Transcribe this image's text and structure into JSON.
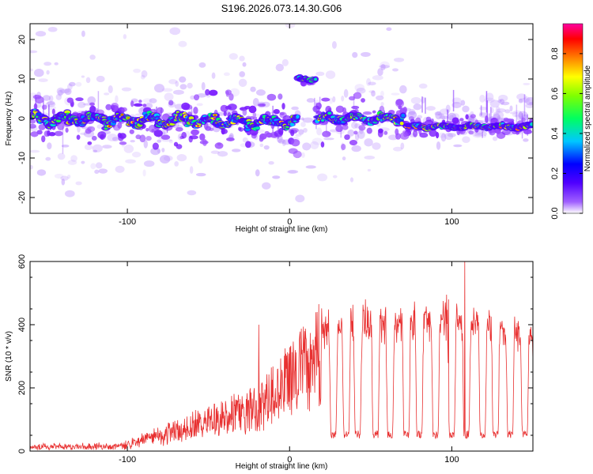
{
  "title": "S196.2026.073.14.30.G06",
  "colors": {
    "snr_line": "#e83030",
    "axis": "#000000",
    "background": "#ffffff"
  },
  "chart_data": [
    {
      "type": "heatmap",
      "xlabel": "Height of straight line (km)",
      "ylabel": "Frequency (Hz)",
      "xlim": [
        -160,
        150
      ],
      "ylim": [
        -24,
        24
      ],
      "xticks": [
        -100,
        0,
        100
      ],
      "xtick_labels": [
        "-100",
        "0",
        "100"
      ],
      "yticks": [
        20,
        10,
        0,
        -10,
        -20
      ],
      "ytick_labels": [
        "20",
        "10",
        "0",
        "-10",
        "-20"
      ],
      "ridge_segments": [
        {
          "x_start": -160,
          "x_end": 5,
          "freq_start": 0,
          "freq_end": -1,
          "wobble": 2.2
        },
        {
          "x_start": 5,
          "x_end": 16,
          "freq_start": 10,
          "freq_end": 10,
          "wobble": 0.6
        },
        {
          "x_start": 17,
          "x_end": 70,
          "freq_start": 0,
          "freq_end": 0,
          "wobble": 1.6
        },
        {
          "x_start": 72,
          "x_end": 150,
          "freq_start": -2,
          "freq_end": -2,
          "wobble": 0.8
        }
      ],
      "colorbar": {
        "label": "Normalized spectral amplitude",
        "range": [
          0,
          0.95
        ],
        "ticks": [
          0.0,
          0.2,
          0.4,
          0.6,
          0.8
        ],
        "tick_labels": [
          "0.0",
          "0.2",
          "0.4",
          "0.6",
          "0.8"
        ],
        "colormap": [
          "#ffffff",
          "#8a00ff",
          "#0000ff",
          "#00c8ff",
          "#00ff40",
          "#ffff00",
          "#ff8000",
          "#ff0000",
          "#ff00a0"
        ]
      }
    },
    {
      "type": "line",
      "xlabel": "Height of straight line (km)",
      "ylabel": "SNR (10 * v/v)",
      "xlim": [
        -160,
        150
      ],
      "ylim": [
        0,
        600
      ],
      "xticks": [
        -100,
        0,
        100
      ],
      "xtick_labels": [
        "-100",
        "0",
        "100"
      ],
      "yticks": [
        0,
        200,
        400,
        600
      ],
      "ytick_labels": [
        "0",
        "200",
        "400",
        "600"
      ],
      "trend_x": [
        -160,
        -110,
        -100,
        -80,
        -60,
        -40,
        -20,
        0,
        20,
        30,
        40,
        60,
        80,
        100,
        120,
        150
      ],
      "trend_y": [
        15,
        18,
        25,
        60,
        100,
        130,
        170,
        280,
        380,
        400,
        400,
        405,
        405,
        415,
        400,
        350
      ],
      "dip_x": [
        27,
        35,
        42,
        53,
        62,
        72,
        80,
        90,
        100,
        109,
        119,
        127,
        136,
        145
      ],
      "dip_y": 40,
      "peaks": [
        {
          "x": 108,
          "y": 600
        },
        {
          "x": 98,
          "y": 480
        },
        {
          "x": 17,
          "y": 440
        },
        {
          "x": -19,
          "y": 400
        }
      ]
    }
  ]
}
